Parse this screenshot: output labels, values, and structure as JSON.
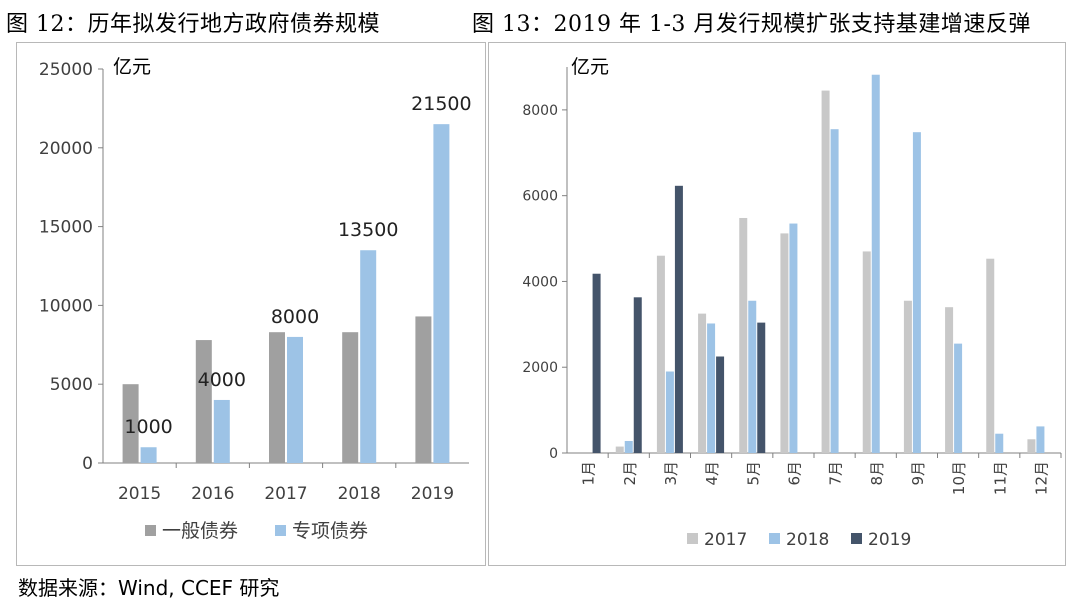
{
  "titles": {
    "left": "图 12：历年拟发行地方政府债券规模",
    "right": "图 13：2019 年 1-3 月发行规模扩张支持基建增速反弹"
  },
  "source": "数据来源：Wind, CCEF 研究",
  "colors": {
    "general_bond": "#a0a0a0",
    "special_bond": "#9dc3e6",
    "y2017": "#c8c8c8",
    "y2018": "#9dc3e6",
    "y2019": "#44546a",
    "axis": "#808080",
    "text": "#404040"
  },
  "chart_data": [
    {
      "type": "bar",
      "title": "历年拟发行地方政府债券规模",
      "ylabel": "亿元",
      "categories": [
        "2015",
        "2016",
        "2017",
        "2018",
        "2019"
      ],
      "series": [
        {
          "name": "一般债券",
          "values": [
            5000,
            7800,
            8300,
            8300,
            9300
          ]
        },
        {
          "name": "专项债券",
          "values": [
            1000,
            4000,
            8000,
            13500,
            21500
          ]
        }
      ],
      "data_labels": [
        "1000",
        "4000",
        "8000",
        "13500",
        "21500"
      ],
      "ylim": [
        0,
        25000
      ],
      "yticks": [
        0,
        5000,
        10000,
        15000,
        20000,
        25000
      ],
      "ytick_labels": [
        "0",
        "5000",
        "10000",
        "15000",
        "20000",
        "25000"
      ],
      "legend_position": "bottom"
    },
    {
      "type": "bar",
      "title": "2019 年 1-3 月发行规模扩张支持基建增速反弹",
      "ylabel": "亿元",
      "categories": [
        "1月",
        "2月",
        "3月",
        "4月",
        "5月",
        "6月",
        "7月",
        "8月",
        "9月",
        "10月",
        "11月",
        "12月"
      ],
      "series": [
        {
          "name": "2017",
          "values": [
            0,
            150,
            4600,
            3250,
            5480,
            5120,
            8450,
            4700,
            3550,
            3400,
            4530,
            320
          ]
        },
        {
          "name": "2018",
          "values": [
            0,
            280,
            1900,
            3020,
            3550,
            5350,
            7550,
            8820,
            7480,
            2550,
            450,
            620
          ]
        },
        {
          "name": "2019",
          "values": [
            4180,
            3630,
            6230,
            2250,
            3040,
            null,
            null,
            null,
            null,
            null,
            null,
            null
          ]
        }
      ],
      "ylim": [
        0,
        9000
      ],
      "yticks": [
        0,
        2000,
        4000,
        6000,
        8000
      ],
      "ytick_labels": [
        "0",
        "2000",
        "4000",
        "6000",
        "8000"
      ],
      "legend_position": "bottom"
    }
  ]
}
